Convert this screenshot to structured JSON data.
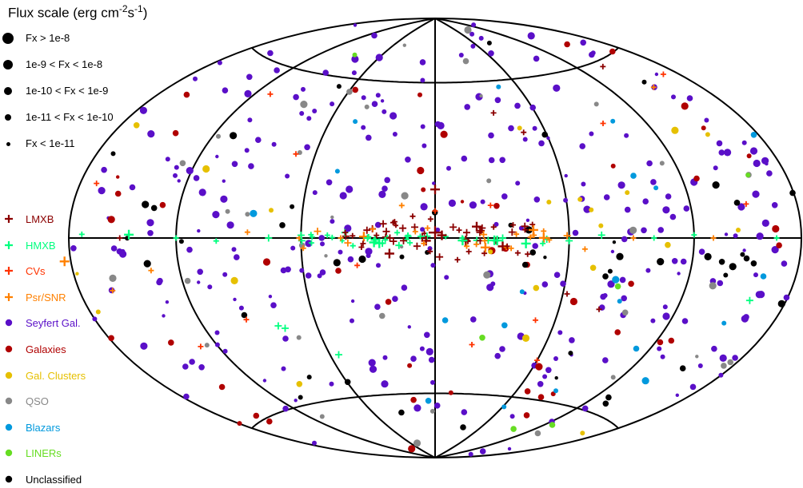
{
  "chart_data": {
    "type": "scatter",
    "projection": "hammer-aitoff",
    "coordinate_system": "galactic",
    "grid": true,
    "legend_placement": "left",
    "title": {
      "text": "Flux scale (erg cm",
      "exp1": "-2",
      "mid": "s",
      "exp2": "-1",
      "end": ")"
    },
    "flux_scale": [
      {
        "label": "Fx > 1e-8",
        "rank": 5
      },
      {
        "label": "1e-9 < Fx < 1e-8",
        "rank": 4
      },
      {
        "label": "1e-10 < Fx < 1e-9",
        "rank": 3
      },
      {
        "label": "1e-11 < Fx < 1e-10",
        "rank": 2
      },
      {
        "label": "Fx < 1e-11",
        "rank": 1
      }
    ],
    "classes": [
      {
        "key": "lmxb",
        "name": "LMXB",
        "marker": "plus",
        "color": "#8b0000"
      },
      {
        "key": "hmxb",
        "name": "HMXB",
        "marker": "plus",
        "color": "#00ff7f"
      },
      {
        "key": "cv",
        "name": "CVs",
        "marker": "plus",
        "color": "#ff3300"
      },
      {
        "key": "psr",
        "name": "Psr/SNR",
        "marker": "plus",
        "color": "#ff8000"
      },
      {
        "key": "sey",
        "name": "Seyfert Gal.",
        "marker": "circle",
        "color": "#5a0fc8"
      },
      {
        "key": "gal",
        "name": "Galaxies",
        "marker": "circle",
        "color": "#b00000"
      },
      {
        "key": "clu",
        "name": "Gal. Clusters",
        "marker": "circle",
        "color": "#e6c000"
      },
      {
        "key": "qso",
        "name": "QSO",
        "marker": "circle",
        "color": "#888888"
      },
      {
        "key": "bla",
        "name": "Blazars",
        "marker": "circle",
        "color": "#0099dd"
      },
      {
        "key": "lin",
        "name": "LINERs",
        "marker": "circle",
        "color": "#66dd22"
      },
      {
        "key": "unc",
        "name": "Unclassified",
        "marker": "circle",
        "color": "#000000"
      }
    ],
    "galactic_plane_note": "l=0,b=0 at center; longitude increases to the left",
    "sources": [
      {
        "class": "lmxb",
        "l": 0,
        "b": 2,
        "flux": 5
      },
      {
        "class": "lmxb",
        "l": 0,
        "b": 18,
        "flux": 4
      },
      {
        "class": "lmxb",
        "l": 4,
        "b": -1,
        "flux": 4
      },
      {
        "class": "lmxb",
        "l": -3,
        "b": 1,
        "flux": 4
      },
      {
        "class": "lmxb",
        "l": 8,
        "b": -3,
        "flux": 3
      },
      {
        "class": "lmxb",
        "l": -8,
        "b": 4,
        "flux": 3
      },
      {
        "class": "lmxb",
        "l": 14,
        "b": -1,
        "flux": 3
      },
      {
        "class": "lmxb",
        "l": -14,
        "b": 2,
        "flux": 3
      },
      {
        "class": "lmxb",
        "l": 20,
        "b": 0,
        "flux": 3
      },
      {
        "class": "lmxb",
        "l": -20,
        "b": -1,
        "flux": 3
      },
      {
        "class": "lmxb",
        "l": 26,
        "b": 1,
        "flux": 2
      },
      {
        "class": "lmxb",
        "l": -26,
        "b": 4,
        "flux": 2
      },
      {
        "class": "lmxb",
        "l": 2,
        "b": 7,
        "flux": 2
      },
      {
        "class": "lmxb",
        "l": -2,
        "b": -7,
        "flux": 3
      },
      {
        "class": "lmxb",
        "l": 10,
        "b": 8,
        "flux": 2
      },
      {
        "class": "lmxb",
        "l": -10,
        "b": -8,
        "flux": 2
      },
      {
        "class": "lmxb",
        "l": 32,
        "b": -2,
        "flux": 2
      },
      {
        "class": "lmxb",
        "l": -32,
        "b": -3,
        "flux": 2
      },
      {
        "class": "lmxb",
        "l": 40,
        "b": 2,
        "flux": 2
      },
      {
        "class": "lmxb",
        "l": -40,
        "b": 3,
        "flux": 2
      },
      {
        "class": "lmxb",
        "l": -35,
        "b": 47,
        "flux": 2
      },
      {
        "class": "lmxb",
        "l": -48,
        "b": 39,
        "flux": 2
      },
      {
        "class": "lmxb",
        "l": -62,
        "b": -20,
        "flux": 2
      },
      {
        "class": "lmxb",
        "l": -80,
        "b": -25,
        "flux": 2
      },
      {
        "class": "lmxb",
        "l": 150,
        "b": 0,
        "flux": 2
      },
      {
        "class": "lmxb",
        "l": -15,
        "b": -5,
        "flux": 2
      },
      {
        "class": "lmxb",
        "l": 18,
        "b": 6,
        "flux": 2
      },
      {
        "class": "lmxb",
        "l": -140,
        "b": 58,
        "flux": 2
      },
      {
        "class": "hmxb",
        "l": 145,
        "b": 1,
        "flux": 4
      },
      {
        "class": "hmxb",
        "l": 30,
        "b": 0,
        "flux": 3
      },
      {
        "class": "hmxb",
        "l": -30,
        "b": 0,
        "flux": 3
      },
      {
        "class": "hmxb",
        "l": 60,
        "b": 1,
        "flux": 3
      },
      {
        "class": "hmxb",
        "l": -60,
        "b": -1,
        "flux": 3
      },
      {
        "class": "hmxb",
        "l": 75,
        "b": 0,
        "flux": 3
      },
      {
        "class": "hmxb",
        "l": -75,
        "b": 1,
        "flux": 3
      },
      {
        "class": "hmxb",
        "l": 12,
        "b": 1,
        "flux": 2
      },
      {
        "class": "hmxb",
        "l": -12,
        "b": 0,
        "flux": 2
      },
      {
        "class": "hmxb",
        "l": 100,
        "b": -1,
        "flux": 2
      },
      {
        "class": "hmxb",
        "l": -100,
        "b": 0,
        "flux": 2
      },
      {
        "class": "hmxb",
        "l": 120,
        "b": 0,
        "flux": 2
      },
      {
        "class": "hmxb",
        "l": -120,
        "b": 1,
        "flux": 2
      },
      {
        "class": "hmxb",
        "l": -165,
        "b": 0,
        "flux": 2
      },
      {
        "class": "hmxb",
        "l": 172,
        "b": 1,
        "flux": 2
      },
      {
        "class": "hmxb",
        "l": 77,
        "b": -32,
        "flux": 3
      },
      {
        "class": "hmxb",
        "l": 80,
        "b": -31,
        "flux": 3
      },
      {
        "class": "hmxb",
        "l": 55,
        "b": -43,
        "flux": 3
      },
      {
        "class": "hmxb",
        "l": -158,
        "b": -18,
        "flux": 3
      },
      {
        "class": "hmxb",
        "l": 48,
        "b": 1,
        "flux": 2
      },
      {
        "class": "hmxb",
        "l": -48,
        "b": -2,
        "flux": 2
      },
      {
        "class": "cv",
        "l": 0,
        "b": 10,
        "flux": 2
      },
      {
        "class": "cv",
        "l": -25,
        "b": 12,
        "flux": 2
      },
      {
        "class": "cv",
        "l": 35,
        "b": -10,
        "flux": 2
      },
      {
        "class": "cv",
        "l": -50,
        "b": -30,
        "flux": 2
      },
      {
        "class": "cv",
        "l": 70,
        "b": 30,
        "flux": 2
      },
      {
        "class": "cv",
        "l": -95,
        "b": 40,
        "flux": 2
      },
      {
        "class": "cv",
        "l": 130,
        "b": -35,
        "flux": 2
      },
      {
        "class": "cv",
        "l": -150,
        "b": 10,
        "flux": 2
      },
      {
        "class": "cv",
        "l": 170,
        "b": 15,
        "flux": 2
      },
      {
        "class": "cv",
        "l": -60,
        "b": -45,
        "flux": 2
      },
      {
        "class": "cv",
        "l": 95,
        "b": -28,
        "flux": 2
      },
      {
        "class": "cv",
        "l": -170,
        "b": 50,
        "flux": 2
      },
      {
        "class": "cv",
        "l": 110,
        "b": 50,
        "flux": 2
      },
      {
        "class": "cv",
        "l": -20,
        "b": -40,
        "flux": 2
      },
      {
        "class": "psr",
        "l": 184,
        "b": -6,
        "flux": 4
      },
      {
        "class": "psr",
        "l": 5,
        "b": -2,
        "flux": 2
      },
      {
        "class": "psr",
        "l": -22,
        "b": -1,
        "flux": 2
      },
      {
        "class": "psr",
        "l": 42,
        "b": 0,
        "flux": 2
      },
      {
        "class": "psr",
        "l": -44,
        "b": 1,
        "flux": 2
      },
      {
        "class": "psr",
        "l": -130,
        "b": 0,
        "flux": 2
      },
      {
        "class": "psr",
        "l": 160,
        "b": -15,
        "flux": 2
      },
      {
        "class": "psr",
        "l": -150,
        "b": 48,
        "flux": 2
      },
      {
        "class": "psr",
        "l": 85,
        "b": 2,
        "flux": 2
      },
      {
        "class": "psr",
        "l": -90,
        "b": 0,
        "flux": 2
      },
      {
        "class": "psr",
        "l": 135,
        "b": -10,
        "flux": 2
      },
      {
        "class": "psr",
        "l": 15,
        "b": 12,
        "flux": 2
      }
    ],
    "random_populations": [
      {
        "class": "sey",
        "count": 300,
        "seed": 11,
        "bmin": -85,
        "bmax": 85
      },
      {
        "class": "gal",
        "count": 48,
        "seed": 23,
        "bmin": -85,
        "bmax": 85
      },
      {
        "class": "clu",
        "count": 22,
        "seed": 37,
        "bmin": -85,
        "bmax": 85
      },
      {
        "class": "qso",
        "count": 38,
        "seed": 41,
        "bmin": -85,
        "bmax": 85
      },
      {
        "class": "bla",
        "count": 20,
        "seed": 53,
        "bmin": -85,
        "bmax": 85
      },
      {
        "class": "lin",
        "count": 6,
        "seed": 67,
        "bmin": -85,
        "bmax": 85
      },
      {
        "class": "unc",
        "count": 24,
        "seed": 79,
        "bmin": -85,
        "bmax": 85
      },
      {
        "class": "lmxb",
        "count": 34,
        "seed": 83,
        "bmin": -6,
        "bmax": 6,
        "lmin": -45,
        "lmax": 45
      },
      {
        "class": "hmxb",
        "count": 30,
        "seed": 89,
        "bmin": -3,
        "bmax": 3,
        "lmin": -60,
        "lmax": 60
      },
      {
        "class": "psr",
        "count": 22,
        "seed": 97,
        "bmin": -4,
        "bmax": 4,
        "lmin": -70,
        "lmax": 70
      },
      {
        "class": "unc",
        "count": 26,
        "seed": 101,
        "bmin": -12,
        "bmax": 12,
        "lmin": -180,
        "lmax": 180
      }
    ]
  }
}
